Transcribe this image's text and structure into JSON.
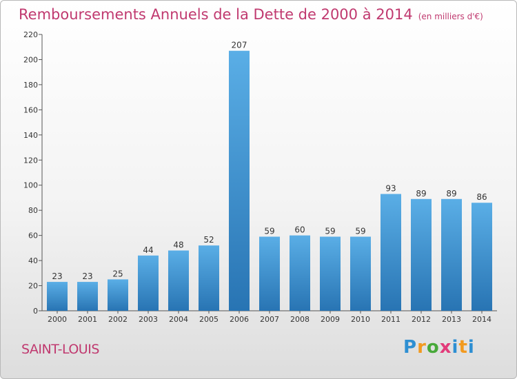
{
  "chart_data": {
    "type": "bar",
    "title": "Remboursements Annuels de la Dette de 2000 à 2014",
    "subtitle": "(en milliers d'€)",
    "categories": [
      "2000",
      "2001",
      "2002",
      "2003",
      "2004",
      "2005",
      "2006",
      "2007",
      "2008",
      "2009",
      "2010",
      "2011",
      "2012",
      "2013",
      "2014"
    ],
    "values": [
      23,
      23,
      25,
      44,
      48,
      52,
      207,
      59,
      60,
      59,
      59,
      93,
      89,
      89,
      86
    ],
    "data_labels": [
      "23",
      "23",
      "25",
      "44",
      "48",
      "52",
      "207",
      "59",
      "60",
      "59",
      "59",
      "93",
      "89",
      "89",
      "86"
    ],
    "ylim": [
      0,
      220
    ],
    "yticks": [
      0,
      20,
      40,
      60,
      80,
      100,
      120,
      140,
      160,
      180,
      200,
      220
    ],
    "ytick_labels": [
      "0",
      "20",
      "40",
      "60",
      "80",
      "100",
      "120",
      "140",
      "160",
      "180",
      "200",
      "220"
    ],
    "grid": false,
    "bar_color": "#4a9fdc",
    "xlabel": "",
    "ylabel": ""
  },
  "footer": {
    "commune": "SAINT-LOUIS",
    "logo_letters": [
      "P",
      "r",
      "o",
      "x",
      "i",
      "t",
      "i"
    ]
  },
  "colors": {
    "title": "#c0396f",
    "bar_top": "#5aaee6",
    "bar_bottom": "#2874b3"
  }
}
